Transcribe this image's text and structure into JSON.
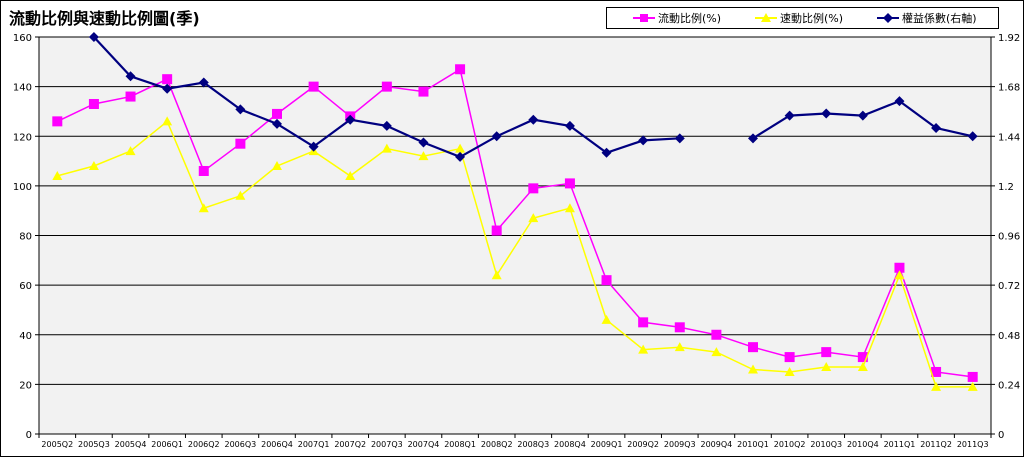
{
  "chart_data": {
    "type": "line",
    "title": "流動比例與速動比例圖(季)",
    "categories": [
      "2005Q2",
      "2005Q3",
      "2005Q4",
      "2006Q1",
      "2006Q2",
      "2006Q3",
      "2006Q4",
      "2007Q1",
      "2007Q2",
      "2007Q3",
      "2007Q4",
      "2008Q1",
      "2008Q2",
      "2008Q3",
      "2008Q4",
      "2009Q1",
      "2009Q2",
      "2009Q3",
      "2009Q4",
      "2010Q1",
      "2010Q2",
      "2010Q3",
      "2010Q4",
      "2011Q1",
      "2011Q2",
      "2011Q3"
    ],
    "series": [
      {
        "name": "流動比例(%)",
        "axis": "left",
        "color": "#FF00FF",
        "marker": "square",
        "values": [
          126,
          133,
          136,
          143,
          106,
          117,
          129,
          140,
          128,
          140,
          138,
          147,
          82,
          99,
          101,
          62,
          45,
          43,
          40,
          35,
          31,
          33,
          31,
          67,
          25,
          23
        ]
      },
      {
        "name": "速動比例(%)",
        "axis": "left",
        "color": "#FFFF00",
        "marker": "triangle",
        "values": [
          104,
          108,
          114,
          126,
          91,
          96,
          108,
          114,
          104,
          115,
          112,
          115,
          64,
          87,
          91,
          46,
          34,
          35,
          33,
          26,
          25,
          27,
          27,
          64,
          19,
          19
        ]
      },
      {
        "name": "權益係數(右軸)",
        "axis": "right",
        "color": "#000080",
        "marker": "diamond",
        "values": [
          null,
          1.92,
          1.73,
          1.67,
          1.7,
          1.57,
          1.5,
          1.39,
          1.52,
          1.49,
          1.41,
          1.34,
          1.44,
          1.52,
          1.49,
          1.36,
          1.42,
          1.43,
          null,
          1.43,
          1.54,
          1.55,
          1.54,
          1.61,
          1.48,
          1.44
        ]
      }
    ],
    "y_left": {
      "min": 0,
      "max": 160,
      "ticks": [
        "0",
        "20",
        "40",
        "60",
        "80",
        "100",
        "120",
        "140",
        "160"
      ]
    },
    "y_right": {
      "min": 0,
      "max": 1.92,
      "ticks": [
        "0",
        "0.24",
        "0.48",
        "0.72",
        "0.96",
        "1.2",
        "1.44",
        "1.68",
        "1.92"
      ]
    },
    "grid": true,
    "legend": "top-right"
  },
  "colors": {
    "plot_bg": "#F2F2F2",
    "grid": "#000000"
  }
}
